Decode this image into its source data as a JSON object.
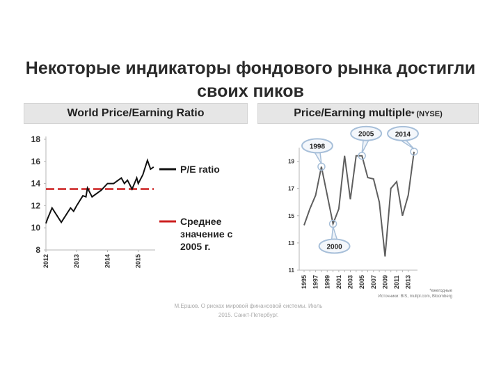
{
  "slide": {
    "title_line1": "Некоторые индикаторы фондового рынка достигли",
    "title_line2": "своих пиков",
    "footnote_line1": "М.Ершов. О рисках мировой финансовой системы. Июль",
    "footnote_line2": "2015. Санкт-Петербург.",
    "source_line1": "*ежегодные",
    "source_line2": "Источники: BIS, multpl.com, Bloomberg"
  },
  "colors": {
    "line": "#111111",
    "average": "#cc1f1f",
    "bubble": "#a7bfd9",
    "grid": "#b5b5b5"
  },
  "chart_data": [
    {
      "type": "line",
      "title": "World Price/Earning Ratio",
      "x_ticks": [
        "2012",
        "2013",
        "2014",
        "2015"
      ],
      "y_ticks": [
        "8",
        "10",
        "12",
        "14",
        "16",
        "18"
      ],
      "ylim": [
        8,
        18
      ],
      "xlim": [
        2012.0,
        2015.55
      ],
      "grid": false,
      "series": [
        {
          "name": "P/E ratio",
          "x": [
            2012.0,
            2012.05,
            2012.2,
            2012.5,
            2012.8,
            2012.9,
            2013.0,
            2013.2,
            2013.3,
            2013.35,
            2013.5,
            2013.8,
            2014.0,
            2014.2,
            2014.45,
            2014.55,
            2014.65,
            2014.8,
            2014.95,
            2015.0,
            2015.15,
            2015.3,
            2015.4,
            2015.5
          ],
          "y": [
            10.4,
            10.8,
            11.8,
            10.5,
            11.8,
            11.5,
            12.0,
            12.9,
            12.8,
            13.6,
            12.8,
            13.4,
            14.0,
            14.0,
            14.5,
            14.0,
            14.3,
            13.5,
            14.5,
            14.0,
            14.8,
            16.1,
            15.3,
            15.5
          ]
        }
      ],
      "reference_line": {
        "value": 13.5,
        "label": "Среднее значение с 2005 г."
      },
      "legend": {
        "position": "right",
        "pe_label": "P/E ratio",
        "avg_line1": "Среднее",
        "avg_line2": "значение с",
        "avg_line3": "2005 г."
      }
    },
    {
      "type": "line",
      "title": "Price/Earning multiple",
      "title_note": "* (NYSE)",
      "x_ticks": [
        "1995",
        "1996",
        "1997",
        "1998",
        "1999",
        "2000",
        "2001",
        "2002",
        "2003",
        "2004",
        "2005",
        "2006",
        "2007",
        "2008",
        "2009",
        "2010",
        "2011",
        "2012",
        "2013"
      ],
      "x_tick_labels": [
        "1995",
        "1997",
        "1999",
        "2001",
        "2003",
        "2005",
        "2007",
        "2009",
        "2011",
        "2013"
      ],
      "y_ticks": [
        "11",
        "13",
        "15",
        "17",
        "19"
      ],
      "ylim": [
        11,
        20
      ],
      "grid": false,
      "series": [
        {
          "name": "",
          "x": [
            1995,
            1996,
            1997,
            1998,
            1999,
            2000,
            2001,
            2002,
            2003,
            2004,
            2005,
            2006,
            2007,
            2008,
            2009,
            2010,
            2011,
            2012,
            2013,
            2014
          ],
          "y": [
            14.3,
            15.5,
            16.5,
            18.6,
            16.5,
            14.4,
            15.5,
            19.4,
            16.2,
            19.4,
            19.4,
            17.8,
            17.7,
            16.0,
            12.0,
            17.0,
            17.5,
            15.0,
            16.5,
            19.7
          ]
        }
      ],
      "annotations": [
        {
          "label": "1998",
          "x": 1998,
          "y": 18.6
        },
        {
          "label": "2000",
          "x": 2000,
          "y": 14.4
        },
        {
          "label": "2005",
          "x": 2005,
          "y": 19.4
        },
        {
          "label": "2014",
          "x": 2014,
          "y": 19.7
        }
      ]
    }
  ]
}
